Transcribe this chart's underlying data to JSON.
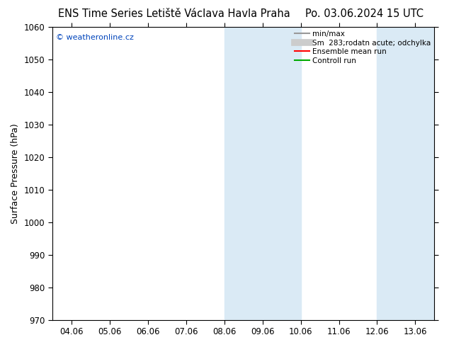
{
  "title_left": "ENS Time Series Letiště Václava Havla Praha",
  "title_right": "Po. 03.06.2024 15 UTC",
  "ylabel": "Surface Pressure (hPa)",
  "ylim": [
    970,
    1060
  ],
  "yticks": [
    970,
    980,
    990,
    1000,
    1010,
    1020,
    1030,
    1040,
    1050,
    1060
  ],
  "xtick_labels": [
    "04.06",
    "05.06",
    "06.06",
    "07.06",
    "08.06",
    "09.06",
    "10.06",
    "11.06",
    "12.06",
    "13.06"
  ],
  "shaded_bands": [
    {
      "xstart": 4.0,
      "xend": 6.0
    },
    {
      "xstart": 8.0,
      "xend": 9.5
    }
  ],
  "band_color": "#daeaf5",
  "watermark_text": "© weatheronline.cz",
  "watermark_color": "#0044bb",
  "legend_entries": [
    {
      "label": "min/max",
      "color": "#999999",
      "lw": 1.5
    },
    {
      "label": "Sm  283;rodatn acute; odchylka",
      "color": "#cccccc",
      "lw": 7
    },
    {
      "label": "Ensemble mean run",
      "color": "#ff0000",
      "lw": 1.5
    },
    {
      "label": "Controll run",
      "color": "#00aa00",
      "lw": 1.5
    }
  ],
  "background_color": "#ffffff",
  "title_fontsize": 10.5,
  "axis_fontsize": 9,
  "tick_fontsize": 8.5
}
